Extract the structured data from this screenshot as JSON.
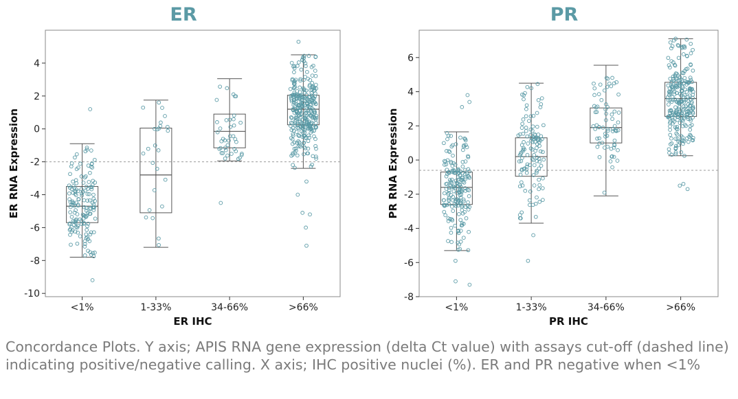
{
  "caption": "Concordance Plots. Y axis; APIS RNA gene expression (delta Ct value) with assays cut-off (dashed line) indicating positive/negative calling. X axis; IHC positive nuclei (%). ER and PR negative when <1%",
  "colors": {
    "title": "#5b9aa5",
    "points": "#5a9aa6",
    "box": "#555555",
    "cutoff": "#9a9a9a",
    "frame": "#888888"
  },
  "chart_data": [
    {
      "type": "box",
      "title": "ER",
      "xlabel": "ER IHC",
      "ylabel": "ER RNA Expression",
      "categories": [
        "<1%",
        "1-33%",
        "34-66%",
        ">66%"
      ],
      "ylim": [
        -10.2,
        6
      ],
      "yticks": [
        -10,
        -8,
        -6,
        -4,
        -2,
        0,
        2,
        4
      ],
      "cutoff": -2,
      "boxes": [
        {
          "category": "<1%",
          "whisker_low": -7.8,
          "q1": -5.7,
          "median": -4.7,
          "q3": -3.5,
          "whisker_high": -0.9,
          "outliers": [
            1.2,
            -9.2
          ],
          "n": 150
        },
        {
          "category": "1-33%",
          "whisker_low": -7.2,
          "q1": -5.1,
          "median": -2.8,
          "q3": 0.05,
          "whisker_high": 1.75,
          "outliers": [],
          "n": 25
        },
        {
          "category": "34-66%",
          "whisker_low": -1.95,
          "q1": -1.15,
          "median": -0.15,
          "q3": 0.9,
          "whisker_high": 3.05,
          "outliers": [
            -4.5
          ],
          "n": 40
        },
        {
          "category": ">66%",
          "whisker_low": -2.4,
          "q1": 0.25,
          "median": 1.2,
          "q3": 2.05,
          "whisker_high": 4.5,
          "outliers": [
            5.3,
            -3.2,
            -4,
            -5.1,
            -5.2,
            -6,
            -7.1
          ],
          "n": 320
        }
      ]
    },
    {
      "type": "box",
      "title": "PR",
      "xlabel": "PR IHC",
      "ylabel": "PR RNA Expression",
      "categories": [
        "<1%",
        "1-33%",
        "34-66%",
        ">66%"
      ],
      "ylim": [
        -8,
        7.6
      ],
      "yticks": [
        -8,
        -6,
        -4,
        -2,
        0,
        2,
        4,
        6
      ],
      "cutoff": -0.6,
      "boxes": [
        {
          "category": "<1%",
          "whisker_low": -5.3,
          "q1": -2.6,
          "median": -1.6,
          "q3": -0.7,
          "whisker_high": 1.65,
          "outliers": [
            3.4,
            3.8,
            3.1,
            -7.1,
            -7.3,
            -5.9
          ],
          "n": 190
        },
        {
          "category": "1-33%",
          "whisker_low": -3.7,
          "q1": -0.95,
          "median": 0.2,
          "q3": 1.3,
          "whisker_high": 4.5,
          "outliers": [
            -4.4,
            -5.9
          ],
          "n": 120
        },
        {
          "category": "34-66%",
          "whisker_low": -2.1,
          "q1": 1.0,
          "median": 1.9,
          "q3": 3.05,
          "whisker_high": 5.55,
          "outliers": [],
          "n": 70
        },
        {
          "category": ">66%",
          "whisker_low": 0.25,
          "q1": 2.55,
          "median": 3.6,
          "q3": 4.55,
          "whisker_high": 7.1,
          "outliers": [
            -1.4,
            -1.5,
            -1.7
          ],
          "n": 260
        }
      ]
    }
  ]
}
